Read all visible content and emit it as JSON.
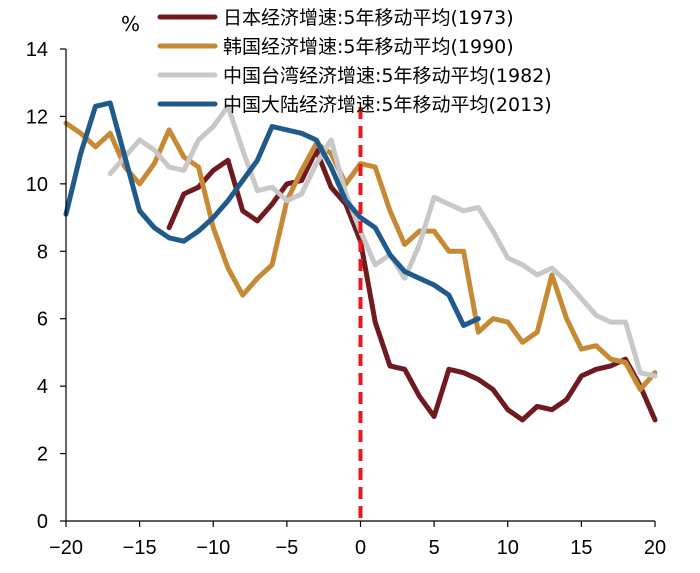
{
  "chart_data": {
    "type": "line",
    "title": "",
    "xlabel": "",
    "ylabel": "%",
    "xlim": [
      -20,
      20
    ],
    "ylim": [
      0,
      14
    ],
    "xticks": [
      -20,
      -15,
      -10,
      -5,
      0,
      5,
      10,
      15,
      20
    ],
    "xtick_labels": [
      "−20",
      "−15",
      "−10",
      "−5",
      "0",
      "5",
      "10",
      "15",
      "20"
    ],
    "yticks": [
      0,
      2,
      4,
      6,
      8,
      10,
      12,
      14
    ],
    "ytick_labels": [
      "0",
      "2",
      "4",
      "6",
      "8",
      "10",
      "12",
      "14"
    ],
    "vline": {
      "x": 0,
      "color": "#e41a1c",
      "style": "dashed"
    },
    "legend_position": "top-right",
    "series": [
      {
        "name": "日本经济增速:5年移动平均(1973)",
        "color": "#6e1a1f",
        "x": [
          -13,
          -12,
          -11,
          -10,
          -9,
          -8,
          -7,
          -6,
          -5,
          -4,
          -3,
          -2,
          -1,
          0,
          1,
          2,
          3,
          4,
          5,
          6,
          7,
          8,
          9,
          10,
          11,
          12,
          13,
          14,
          15,
          16,
          17,
          18,
          19,
          20
        ],
        "values": [
          8.7,
          9.7,
          9.9,
          10.4,
          10.7,
          9.2,
          8.9,
          9.4,
          10.0,
          10.1,
          11.0,
          9.9,
          9.4,
          8.3,
          5.9,
          4.6,
          4.5,
          3.7,
          3.1,
          4.5,
          4.4,
          4.2,
          3.9,
          3.3,
          3.0,
          3.4,
          3.3,
          3.6,
          4.3,
          4.5,
          4.6,
          4.8,
          4.0,
          3.0
        ]
      },
      {
        "name": "韩国经济增速:5年移动平均(1990)",
        "color": "#c68a35",
        "x": [
          -20,
          -19,
          -18,
          -17,
          -16,
          -15,
          -14,
          -13,
          -12,
          -11,
          -10,
          -9,
          -8,
          -7,
          -6,
          -5,
          -4,
          -3,
          -2,
          -1,
          0,
          1,
          2,
          3,
          4,
          5,
          6,
          7,
          8,
          9,
          10,
          11,
          12,
          13,
          14,
          15,
          16,
          17,
          18,
          19,
          20
        ],
        "values": [
          11.8,
          11.5,
          11.1,
          11.5,
          10.5,
          10.0,
          10.6,
          11.6,
          10.8,
          10.5,
          8.7,
          7.5,
          6.7,
          7.2,
          7.6,
          9.5,
          10.4,
          11.2,
          10.9,
          10.0,
          10.6,
          10.5,
          9.2,
          8.2,
          8.6,
          8.6,
          8.0,
          8.0,
          5.6,
          6.0,
          5.9,
          5.3,
          5.6,
          7.3,
          6.0,
          5.1,
          5.2,
          4.8,
          4.7,
          3.9,
          4.4
        ]
      },
      {
        "name": "中国台湾经济增速:5年移动平均(1982)",
        "color": "#c8c8c8",
        "x": [
          -17,
          -16,
          -15,
          -14,
          -13,
          -12,
          -11,
          -10,
          -9,
          -8,
          -7,
          -6,
          -5,
          -4,
          -3,
          -2,
          -1,
          0,
          1,
          2,
          3,
          4,
          5,
          6,
          7,
          8,
          9,
          10,
          11,
          12,
          13,
          14,
          15,
          16,
          17,
          18,
          19,
          20
        ],
        "values": [
          10.3,
          10.8,
          11.3,
          11.0,
          10.5,
          10.4,
          11.3,
          11.7,
          12.3,
          11.0,
          9.8,
          9.9,
          9.5,
          9.7,
          10.6,
          11.3,
          9.7,
          8.6,
          7.6,
          7.9,
          7.2,
          8.2,
          9.6,
          9.4,
          9.2,
          9.3,
          8.6,
          7.8,
          7.6,
          7.3,
          7.5,
          7.1,
          6.6,
          6.1,
          5.9,
          5.9,
          4.4,
          4.3
        ]
      },
      {
        "name": "中国大陆经济增速:5年移动平均(2013)",
        "color": "#1f5a8a",
        "x": [
          -20,
          -19,
          -18,
          -17,
          -16,
          -15,
          -14,
          -13,
          -12,
          -11,
          -10,
          -9,
          -8,
          -7,
          -6,
          -5,
          -4,
          -3,
          -2,
          -1,
          0,
          1,
          2,
          3,
          4,
          5,
          6,
          7,
          8
        ],
        "values": [
          9.1,
          10.9,
          12.3,
          12.4,
          10.8,
          9.2,
          8.7,
          8.4,
          8.3,
          8.6,
          9.0,
          9.5,
          10.1,
          10.7,
          11.7,
          11.6,
          11.5,
          11.3,
          10.5,
          9.5,
          9.0,
          8.7,
          7.9,
          7.4,
          7.2,
          7.0,
          6.7,
          5.8,
          6.0
        ]
      }
    ]
  }
}
